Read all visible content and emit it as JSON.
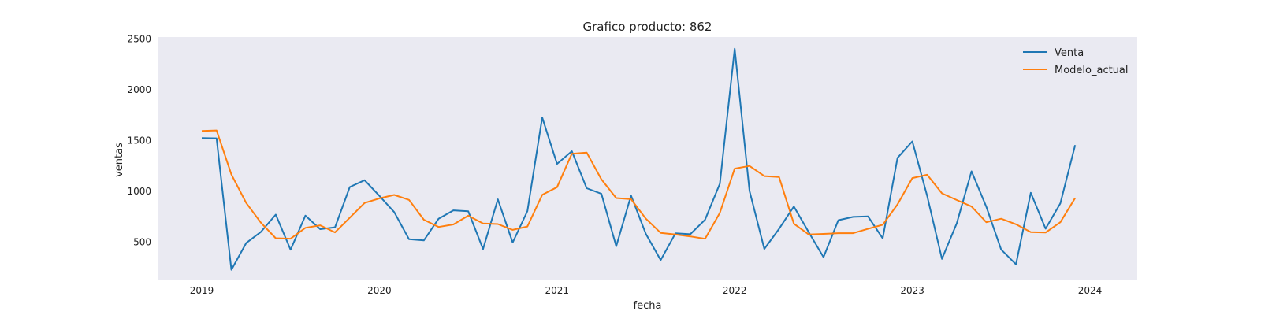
{
  "chart_data": {
    "type": "line",
    "title": "Grafico producto: 862",
    "xlabel": "fecha",
    "ylabel": "ventas",
    "x_start": "2019-01",
    "x_ticks": [
      "2019",
      "2020",
      "2021",
      "2022",
      "2023",
      "2024"
    ],
    "y_ticks": [
      "500",
      "1000",
      "1500",
      "2000",
      "2500"
    ],
    "ylim": [
      130,
      2520
    ],
    "grid": false,
    "legend": "top-right",
    "series": [
      {
        "name": "Venta",
        "color": "#1f77b4",
        "values": [
          1525,
          1522,
          226,
          490,
          600,
          770,
          424,
          760,
          627,
          645,
          1042,
          1109,
          955,
          795,
          527,
          516,
          730,
          812,
          803,
          430,
          921,
          495,
          805,
          1727,
          1270,
          1395,
          1030,
          975,
          458,
          958,
          580,
          322,
          586,
          577,
          720,
          1075,
          2405,
          1005,
          432,
          630,
          850,
          597,
          350,
          715,
          748,
          753,
          536,
          1330,
          1492,
          955,
          333,
          685,
          1197,
          847,
          426,
          280,
          985,
          631,
          880,
          1455
        ]
      },
      {
        "name": "Modelo_actual",
        "color": "#ff7f0e",
        "values": [
          1594,
          1600,
          1165,
          885,
          690,
          537,
          533,
          640,
          665,
          595,
          740,
          885,
          930,
          964,
          915,
          720,
          648,
          673,
          759,
          683,
          677,
          620,
          653,
          965,
          1040,
          1370,
          1382,
          1117,
          933,
          922,
          730,
          590,
          575,
          555,
          532,
          788,
          1223,
          1250,
          1150,
          1140,
          680,
          575,
          580,
          587,
          587,
          630,
          670,
          871,
          1130,
          1163,
          980,
          914,
          850,
          695,
          730,
          675,
          597,
          593,
          695,
          934
        ]
      }
    ]
  }
}
